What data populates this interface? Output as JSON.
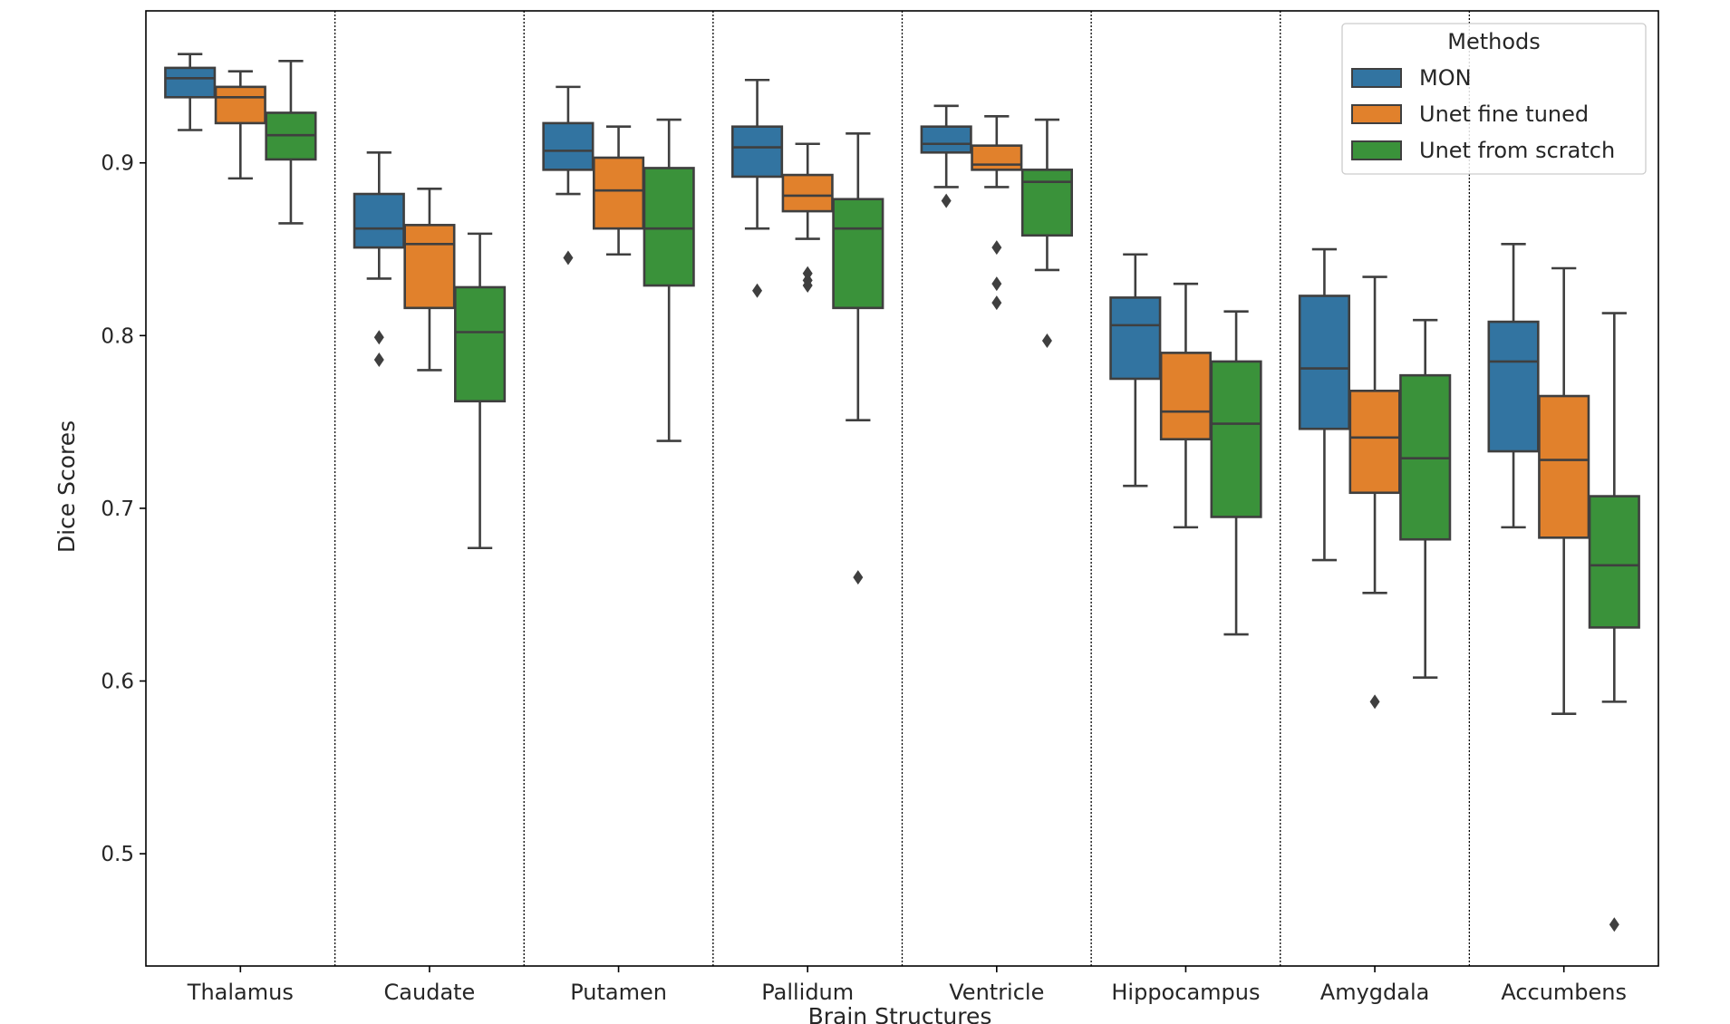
{
  "chart_data": {
    "type": "boxplot",
    "xlabel": "Brain Structures",
    "ylabel": "Dice Scores",
    "ylim": [
      0.435,
      0.988
    ],
    "yticks": [
      0.5,
      0.6,
      0.7,
      0.8,
      0.9
    ],
    "ytick_labels": [
      "0.5",
      "0.6",
      "0.7",
      "0.8",
      "0.9"
    ],
    "categories": [
      "Thalamus",
      "Caudate",
      "Putamen",
      "Pallidum",
      "Ventricle",
      "Hippocampus",
      "Amygdala",
      "Accumbens"
    ],
    "category_separators": "dotted",
    "legend": {
      "title": "Methods",
      "position": "top-right"
    },
    "series": [
      {
        "name": "MON",
        "color": "#3274a1",
        "boxes": [
          {
            "whislo": 0.919,
            "q1": 0.938,
            "med": 0.949,
            "q3": 0.955,
            "whishi": 0.963,
            "fliers": []
          },
          {
            "whislo": 0.833,
            "q1": 0.851,
            "med": 0.862,
            "q3": 0.882,
            "whishi": 0.906,
            "fliers": [
              0.786,
              0.799
            ]
          },
          {
            "whislo": 0.882,
            "q1": 0.896,
            "med": 0.907,
            "q3": 0.923,
            "whishi": 0.944,
            "fliers": [
              0.845
            ]
          },
          {
            "whislo": 0.862,
            "q1": 0.892,
            "med": 0.909,
            "q3": 0.921,
            "whishi": 0.948,
            "fliers": [
              0.826
            ]
          },
          {
            "whislo": 0.886,
            "q1": 0.906,
            "med": 0.911,
            "q3": 0.921,
            "whishi": 0.933,
            "fliers": [
              0.878
            ]
          },
          {
            "whislo": 0.713,
            "q1": 0.775,
            "med": 0.806,
            "q3": 0.822,
            "whishi": 0.847,
            "fliers": []
          },
          {
            "whislo": 0.67,
            "q1": 0.746,
            "med": 0.781,
            "q3": 0.823,
            "whishi": 0.85,
            "fliers": []
          },
          {
            "whislo": 0.689,
            "q1": 0.733,
            "med": 0.785,
            "q3": 0.808,
            "whishi": 0.853,
            "fliers": []
          }
        ]
      },
      {
        "name": "Unet fine tuned",
        "color": "#e1812c",
        "boxes": [
          {
            "whislo": 0.891,
            "q1": 0.923,
            "med": 0.938,
            "q3": 0.944,
            "whishi": 0.953,
            "fliers": []
          },
          {
            "whislo": 0.78,
            "q1": 0.816,
            "med": 0.853,
            "q3": 0.864,
            "whishi": 0.885,
            "fliers": []
          },
          {
            "whislo": 0.847,
            "q1": 0.862,
            "med": 0.884,
            "q3": 0.903,
            "whishi": 0.921,
            "fliers": []
          },
          {
            "whislo": 0.856,
            "q1": 0.872,
            "med": 0.881,
            "q3": 0.893,
            "whishi": 0.911,
            "fliers": [
              0.829,
              0.832,
              0.836
            ]
          },
          {
            "whislo": 0.886,
            "q1": 0.896,
            "med": 0.899,
            "q3": 0.91,
            "whishi": 0.927,
            "fliers": [
              0.819,
              0.83,
              0.851
            ]
          },
          {
            "whislo": 0.689,
            "q1": 0.74,
            "med": 0.756,
            "q3": 0.79,
            "whishi": 0.83,
            "fliers": []
          },
          {
            "whislo": 0.651,
            "q1": 0.709,
            "med": 0.741,
            "q3": 0.768,
            "whishi": 0.834,
            "fliers": [
              0.588
            ]
          },
          {
            "whislo": 0.581,
            "q1": 0.683,
            "med": 0.728,
            "q3": 0.765,
            "whishi": 0.839,
            "fliers": []
          }
        ]
      },
      {
        "name": "Unet from scratch",
        "color": "#3a923a",
        "boxes": [
          {
            "whislo": 0.865,
            "q1": 0.902,
            "med": 0.916,
            "q3": 0.929,
            "whishi": 0.959,
            "fliers": []
          },
          {
            "whislo": 0.677,
            "q1": 0.762,
            "med": 0.802,
            "q3": 0.828,
            "whishi": 0.859,
            "fliers": []
          },
          {
            "whislo": 0.739,
            "q1": 0.829,
            "med": 0.862,
            "q3": 0.897,
            "whishi": 0.925,
            "fliers": []
          },
          {
            "whislo": 0.751,
            "q1": 0.816,
            "med": 0.862,
            "q3": 0.879,
            "whishi": 0.917,
            "fliers": [
              0.66
            ]
          },
          {
            "whislo": 0.838,
            "q1": 0.858,
            "med": 0.889,
            "q3": 0.896,
            "whishi": 0.925,
            "fliers": [
              0.797
            ]
          },
          {
            "whislo": 0.627,
            "q1": 0.695,
            "med": 0.749,
            "q3": 0.785,
            "whishi": 0.814,
            "fliers": []
          },
          {
            "whislo": 0.602,
            "q1": 0.682,
            "med": 0.729,
            "q3": 0.777,
            "whishi": 0.809,
            "fliers": []
          },
          {
            "whislo": 0.588,
            "q1": 0.631,
            "med": 0.667,
            "q3": 0.707,
            "whishi": 0.813,
            "fliers": [
              0.459
            ]
          }
        ]
      }
    ]
  }
}
